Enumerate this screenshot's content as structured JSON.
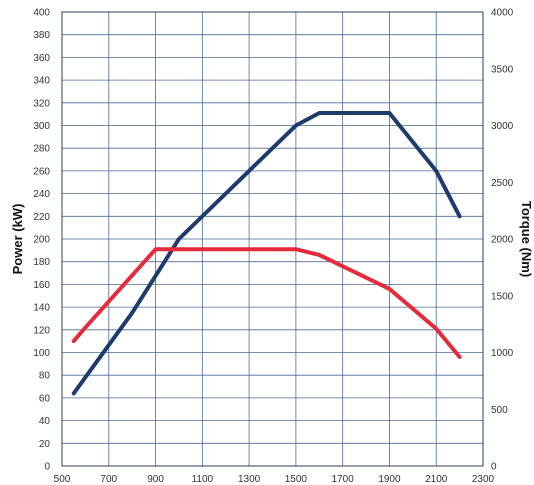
{
  "chart_data": {
    "type": "line",
    "x_axis": {
      "range": [
        500,
        2300
      ],
      "ticks": [
        500,
        700,
        900,
        1100,
        1300,
        1500,
        1700,
        1900,
        2100,
        2300
      ]
    },
    "y_left": {
      "label": "Power (kW)",
      "range": [
        0,
        400
      ],
      "ticks": [
        0,
        20,
        40,
        60,
        80,
        100,
        120,
        140,
        160,
        180,
        200,
        220,
        240,
        260,
        280,
        300,
        320,
        340,
        360,
        380,
        400
      ]
    },
    "y_right": {
      "label": "Torque (Nm)",
      "range": [
        0,
        4000
      ],
      "ticks": [
        0,
        500,
        1000,
        1500,
        2000,
        2500,
        3000,
        3500,
        4000
      ]
    },
    "grid": true,
    "series": [
      {
        "axis": "right",
        "color": "#1f3b6e",
        "x": [
          550,
          800,
          1000,
          1500,
          1600,
          1900,
          2100,
          2200
        ],
        "y": [
          640,
          1350,
          2000,
          3000,
          3110,
          3110,
          2600,
          2200
        ]
      },
      {
        "axis": "left",
        "color": "#e32b3b",
        "x": [
          550,
          600,
          900,
          1500,
          1600,
          1900,
          2100,
          2200
        ],
        "y": [
          110,
          122,
          191,
          191,
          186,
          156,
          121,
          96
        ]
      }
    ]
  }
}
